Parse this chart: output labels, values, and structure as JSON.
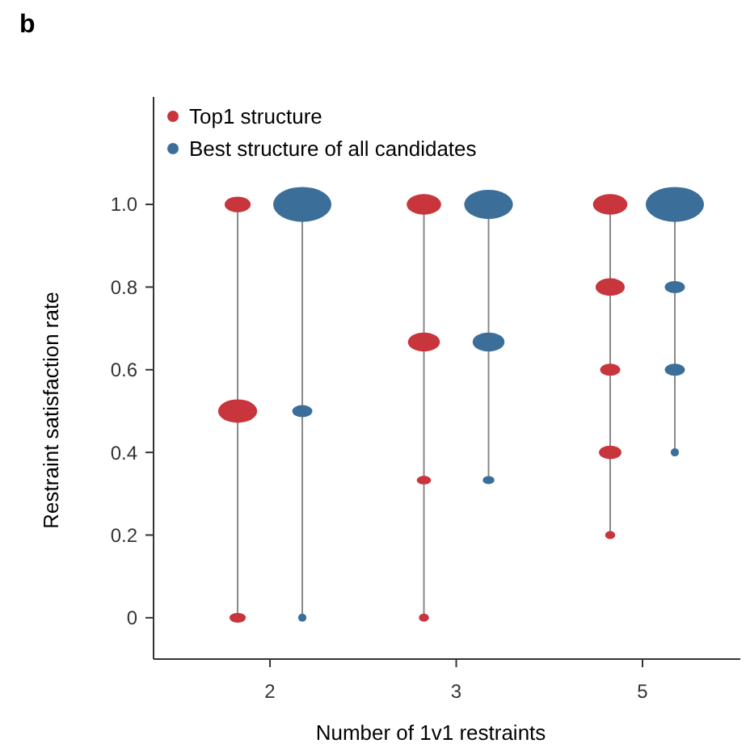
{
  "chart_data": {
    "type": "bubble",
    "title": "b",
    "xlabel": "Number of 1v1 restraints",
    "ylabel": "Restraint satisfaction rate",
    "categories": [
      "2",
      "3",
      "5"
    ],
    "ylim": [
      -0.1,
      1.26
    ],
    "yticks": [
      0,
      0.2,
      0.4,
      0.6,
      0.8,
      {
        "value": 1.0,
        "label": "1.0"
      }
    ],
    "legend": "top left",
    "series": [
      {
        "name": "Top1 structure",
        "color": "#c8353c",
        "x": [
          "2",
          "2",
          "2",
          "3",
          "3",
          "3",
          "3",
          "5",
          "5",
          "5",
          "5",
          "5"
        ],
        "values": [
          0,
          0.5,
          1.0,
          0,
          0.333,
          0.667,
          1.0,
          0.2,
          0.4,
          0.6,
          0.8,
          1.0
        ],
        "sizes": [
          0.08,
          0.45,
          0.2,
          0.03,
          0.06,
          0.3,
          0.35,
          0.03,
          0.15,
          0.12,
          0.25,
          0.35
        ]
      },
      {
        "name": "Best structure of all candidates",
        "color": "#3b6f9a",
        "x": [
          "2",
          "2",
          "2",
          "3",
          "3",
          "3",
          "5",
          "5",
          "5",
          "5"
        ],
        "values": [
          0,
          0.5,
          1.0,
          0.333,
          0.667,
          1.0,
          0.4,
          0.6,
          0.8,
          1.0
        ],
        "sizes": [
          0.02,
          0.12,
          1.0,
          0.04,
          0.3,
          0.7,
          0.02,
          0.12,
          0.12,
          1.0
        ]
      }
    ]
  }
}
